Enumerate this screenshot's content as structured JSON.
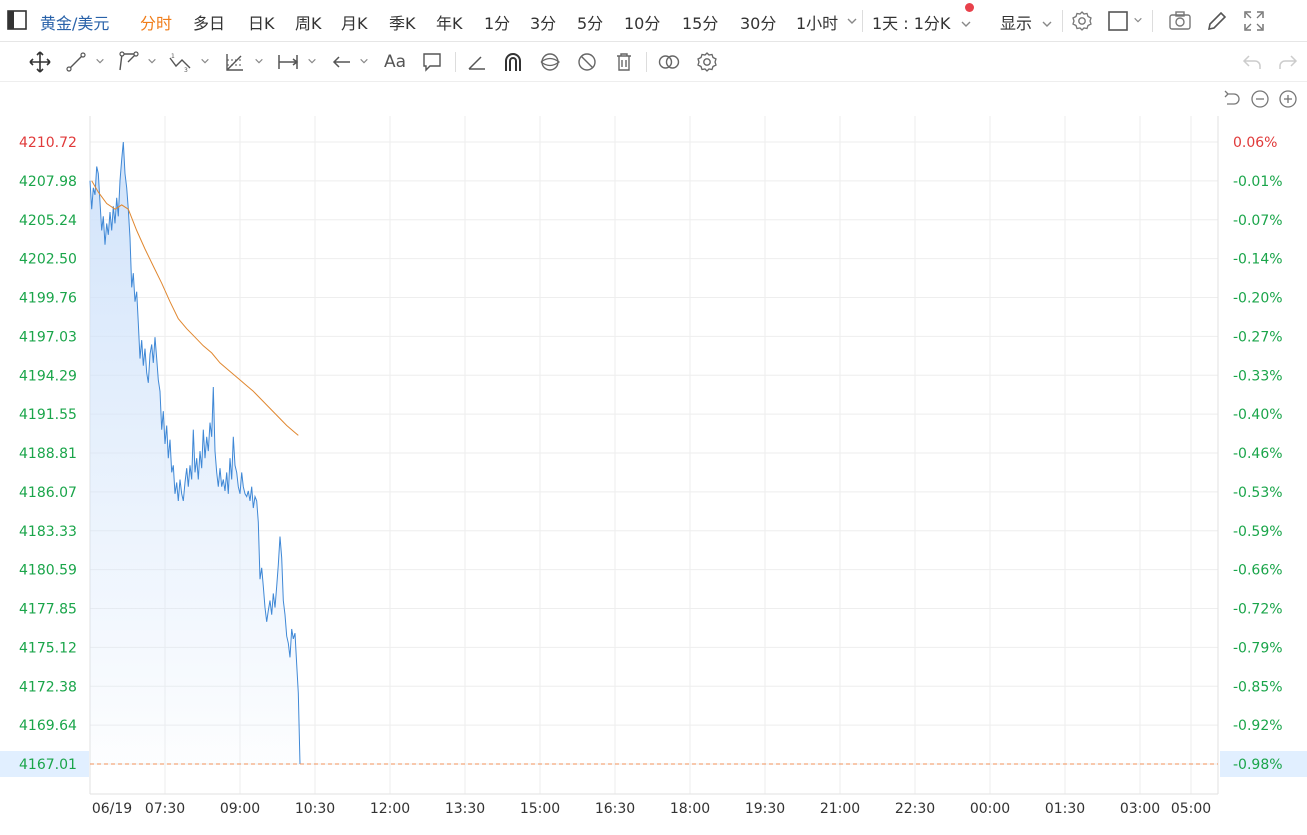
{
  "header": {
    "symbol": "黄金/美元",
    "tabs": [
      {
        "label": "分时",
        "active": true
      },
      {
        "label": "多日"
      },
      {
        "label": "日K"
      },
      {
        "label": "周K"
      },
      {
        "label": "月K"
      },
      {
        "label": "季K"
      },
      {
        "label": "年K"
      },
      {
        "label": "1分"
      },
      {
        "label": "3分"
      },
      {
        "label": "5分"
      },
      {
        "label": "10分"
      },
      {
        "label": "15分"
      },
      {
        "label": "30分"
      },
      {
        "label": "1小时"
      }
    ],
    "period_select": "1天 : 1分K",
    "display_label": "显示"
  },
  "toolbar": {
    "icons": [
      "move-icon",
      "line-tool-icon",
      "polyline-tool-icon",
      "wave-tool-icon",
      "fib-tool-icon",
      "measure-tool-icon",
      "arrow-tool-icon",
      "text-tool-icon",
      "note-tool-icon",
      "angle-tool-icon",
      "magnet-icon",
      "eye-icon",
      "hide-icon",
      "trash-icon",
      "compare-icon",
      "settings-icon"
    ],
    "text_label": "Aa"
  },
  "colors": {
    "price_line": "#3f88d6",
    "avg_line": "#e0872f",
    "up": "#e03a3a",
    "down": "#1aa54a",
    "active_tab": "#f07d1a",
    "symbol": "#2962a9",
    "last_price_line": "#f0915a",
    "area_top": "#cfe2fa"
  },
  "chart_data": {
    "type": "area",
    "ylim": [
      4167.01,
      4210.72
    ],
    "y_ticks": [
      "4210.72",
      "4207.98",
      "4205.24",
      "4202.50",
      "4199.76",
      "4197.03",
      "4194.29",
      "4191.55",
      "4188.81",
      "4186.07",
      "4183.33",
      "4180.59",
      "4177.85",
      "4175.12",
      "4172.38",
      "4169.64",
      "4167.01"
    ],
    "pct_ticks": [
      "0.06%",
      "-0.01%",
      "-0.07%",
      "-0.14%",
      "-0.20%",
      "-0.27%",
      "-0.33%",
      "-0.40%",
      "-0.46%",
      "-0.53%",
      "-0.59%",
      "-0.66%",
      "-0.72%",
      "-0.79%",
      "-0.85%",
      "-0.92%",
      "-0.98%"
    ],
    "x_ticks": [
      "06/19",
      "07:30",
      "09:00",
      "10:30",
      "12:00",
      "13:30",
      "15:00",
      "16:30",
      "18:00",
      "19:30",
      "21:00",
      "22:30",
      "00:00",
      "01:30",
      "03:00",
      "05:00"
    ],
    "last_price": "4167.01",
    "last_pct": "-0.98%",
    "price_points": [
      [
        0,
        4208.0
      ],
      [
        2,
        4206.0
      ],
      [
        4,
        4207.5
      ],
      [
        6,
        4207.0
      ],
      [
        8,
        4209.0
      ],
      [
        10,
        4208.5
      ],
      [
        12,
        4206.5
      ],
      [
        14,
        4204.5
      ],
      [
        16,
        4205.5
      ],
      [
        18,
        4203.5
      ],
      [
        20,
        4205.0
      ],
      [
        22,
        4204.2
      ],
      [
        24,
        4205.8
      ],
      [
        26,
        4204.5
      ],
      [
        28,
        4206.2
      ],
      [
        30,
        4205.0
      ],
      [
        32,
        4206.8
      ],
      [
        34,
        4205.5
      ],
      [
        36,
        4208.0
      ],
      [
        38,
        4209.5
      ],
      [
        40,
        4210.72
      ],
      [
        42,
        4208.5
      ],
      [
        44,
        4207.5
      ],
      [
        46,
        4206.0
      ],
      [
        48,
        4204.0
      ],
      [
        50,
        4200.5
      ],
      [
        52,
        4201.5
      ],
      [
        54,
        4199.5
      ],
      [
        56,
        4200.2
      ],
      [
        58,
        4198.0
      ],
      [
        60,
        4195.5
      ],
      [
        62,
        4196.8
      ],
      [
        64,
        4195.0
      ],
      [
        66,
        4196.2
      ],
      [
        68,
        4194.5
      ],
      [
        70,
        4193.8
      ],
      [
        72,
        4195.8
      ],
      [
        74,
        4196.5
      ],
      [
        76,
        4195.2
      ],
      [
        78,
        4197.0
      ],
      [
        80,
        4195.5
      ],
      [
        82,
        4194.0
      ],
      [
        84,
        4193.2
      ],
      [
        86,
        4190.5
      ],
      [
        88,
        4191.8
      ],
      [
        90,
        4189.5
      ],
      [
        92,
        4190.8
      ],
      [
        94,
        4188.5
      ],
      [
        96,
        4189.8
      ],
      [
        98,
        4187.5
      ],
      [
        100,
        4188.0
      ],
      [
        102,
        4186.0
      ],
      [
        104,
        4186.8
      ],
      [
        106,
        4185.5
      ],
      [
        108,
        4187.0
      ],
      [
        110,
        4186.0
      ],
      [
        112,
        4185.5
      ],
      [
        114,
        4186.8
      ],
      [
        116,
        4187.8
      ],
      [
        118,
        4186.5
      ],
      [
        120,
        4188.0
      ],
      [
        122,
        4187.0
      ],
      [
        124,
        4190.5
      ],
      [
        126,
        4187.5
      ],
      [
        128,
        4188.5
      ],
      [
        130,
        4187.0
      ],
      [
        132,
        4189.0
      ],
      [
        134,
        4187.8
      ],
      [
        136,
        4190.5
      ],
      [
        138,
        4188.5
      ],
      [
        140,
        4190.0
      ],
      [
        142,
        4189.0
      ],
      [
        144,
        4191.0
      ],
      [
        146,
        4190.0
      ],
      [
        148,
        4193.5
      ],
      [
        150,
        4189.0
      ],
      [
        152,
        4187.5
      ],
      [
        154,
        4186.5
      ],
      [
        156,
        4187.8
      ],
      [
        158,
        4186.5
      ],
      [
        160,
        4187.0
      ],
      [
        162,
        4186.2
      ],
      [
        164,
        4187.5
      ],
      [
        166,
        4186.0
      ],
      [
        168,
        4188.5
      ],
      [
        170,
        4187.0
      ],
      [
        172,
        4190.0
      ],
      [
        174,
        4188.0
      ],
      [
        176,
        4187.5
      ],
      [
        178,
        4186.5
      ],
      [
        180,
        4186.0
      ],
      [
        182,
        4187.5
      ],
      [
        184,
        4186.5
      ],
      [
        186,
        4186.0
      ],
      [
        188,
        4185.8
      ],
      [
        190,
        4186.2
      ],
      [
        192,
        4185.5
      ],
      [
        194,
        4186.5
      ],
      [
        196,
        4185.0
      ],
      [
        198,
        4185.8
      ],
      [
        200,
        4185.5
      ],
      [
        202,
        4184.0
      ],
      [
        204,
        4180.0
      ],
      [
        206,
        4180.8
      ],
      [
        208,
        4179.5
      ],
      [
        210,
        4178.0
      ],
      [
        212,
        4177.0
      ],
      [
        214,
        4177.8
      ],
      [
        216,
        4178.5
      ],
      [
        218,
        4177.5
      ],
      [
        220,
        4179.0
      ],
      [
        222,
        4178.0
      ],
      [
        224,
        4179.5
      ],
      [
        226,
        4181.0
      ],
      [
        228,
        4183.0
      ],
      [
        230,
        4181.5
      ],
      [
        232,
        4178.5
      ],
      [
        234,
        4177.5
      ],
      [
        236,
        4176.0
      ],
      [
        238,
        4175.5
      ],
      [
        240,
        4174.5
      ],
      [
        242,
        4176.5
      ],
      [
        244,
        4175.8
      ],
      [
        246,
        4176.2
      ],
      [
        248,
        4174.0
      ],
      [
        250,
        4172.0
      ],
      [
        252,
        4167.01
      ]
    ],
    "avg_points": [
      [
        2,
        4208.0
      ],
      [
        10,
        4207.2
      ],
      [
        20,
        4206.4
      ],
      [
        30,
        4206.0
      ],
      [
        38,
        4206.3
      ],
      [
        46,
        4206.0
      ],
      [
        56,
        4204.5
      ],
      [
        66,
        4203.2
      ],
      [
        76,
        4202.0
      ],
      [
        86,
        4200.8
      ],
      [
        96,
        4199.5
      ],
      [
        106,
        4198.3
      ],
      [
        116,
        4197.6
      ],
      [
        126,
        4197.0
      ],
      [
        136,
        4196.4
      ],
      [
        146,
        4195.9
      ],
      [
        156,
        4195.2
      ],
      [
        166,
        4194.7
      ],
      [
        176,
        4194.2
      ],
      [
        186,
        4193.7
      ],
      [
        196,
        4193.2
      ],
      [
        206,
        4192.6
      ],
      [
        216,
        4192.0
      ],
      [
        226,
        4191.4
      ],
      [
        236,
        4190.8
      ],
      [
        246,
        4190.3
      ],
      [
        250,
        4190.1
      ]
    ]
  }
}
